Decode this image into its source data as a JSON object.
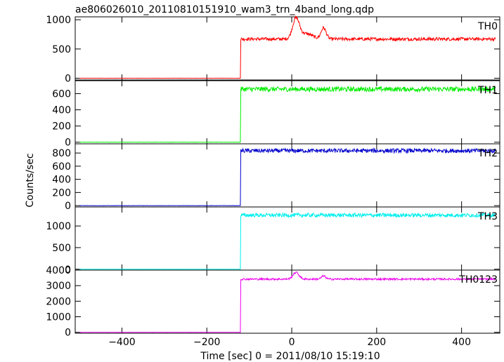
{
  "chart_data": {
    "type": "line",
    "title": "ae806026010_20110810151910_wam3_trn_4band_long.qdp",
    "xlabel": "Time [sec] 0 = 2011/08/10 15:19:10",
    "ylabel": "Counts/sec",
    "xlim": [
      -510,
      490
    ],
    "x_ticks": [
      -400,
      -200,
      0,
      200,
      400
    ],
    "x_tick_labels": [
      "−400",
      "−200",
      "0",
      "200",
      "400"
    ],
    "trigger_time": -120,
    "x_start": -500,
    "x_end": 480,
    "panels": [
      {
        "name": "TH0",
        "color": "#ff0000",
        "ylim": [
          -30,
          1050
        ],
        "y_ticks": [
          0,
          500,
          1000
        ],
        "y_tick_labels": [
          "0",
          "500",
          "1000"
        ],
        "pre_level": 0,
        "post_level": 670,
        "noise": 28,
        "features": [
          {
            "t": 10,
            "peak": 1020,
            "width": 8
          },
          {
            "t": 75,
            "peak": 860,
            "width": 6
          },
          {
            "t": 35,
            "peak": 760,
            "width": 14
          }
        ]
      },
      {
        "name": "TH1",
        "color": "#00ee00",
        "ylim": [
          -20,
          760
        ],
        "y_ticks": [
          0,
          200,
          400,
          600
        ],
        "y_tick_labels": [
          "0",
          "200",
          "400",
          "600"
        ],
        "pre_level": 0,
        "post_level": 655,
        "noise": 30,
        "features": []
      },
      {
        "name": "TH2",
        "color": "#0000cc",
        "ylim": [
          -20,
          940
        ],
        "y_ticks": [
          0,
          200,
          400,
          600,
          800
        ],
        "y_tick_labels": [
          "0",
          "200",
          "400",
          "600",
          "800"
        ],
        "pre_level": 0,
        "post_level": 835,
        "noise": 32,
        "features": []
      },
      {
        "name": "TH3",
        "color": "#00eeee",
        "ylim": [
          -20,
          1440
        ],
        "y_ticks": [
          0,
          500,
          1000
        ],
        "y_tick_labels": [
          "0",
          "500",
          "1000"
        ],
        "pre_level": 0,
        "post_level": 1250,
        "noise": 45,
        "features": []
      },
      {
        "name": "TH0123",
        "color": "#ee00ee",
        "ylim": [
          -60,
          4000
        ],
        "y_ticks": [
          0,
          1000,
          2000,
          3000
        ],
        "y_tick_labels": [
          "0",
          "1000",
          "2000",
          "3000"
        ],
        "top_tick_label": "4000",
        "pre_level": 0,
        "post_level": 3420,
        "noise": 60,
        "features": [
          {
            "t": 10,
            "peak": 3850,
            "width": 7
          },
          {
            "t": 75,
            "peak": 3620,
            "width": 5
          }
        ]
      }
    ]
  }
}
